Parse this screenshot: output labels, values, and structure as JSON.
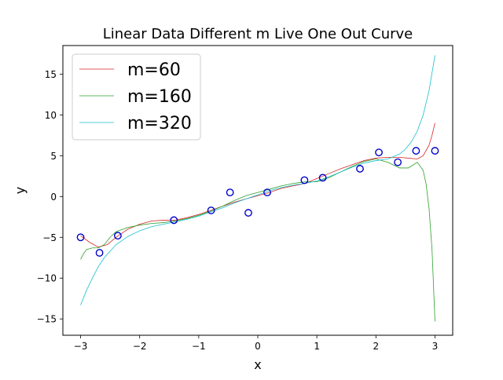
{
  "chart_data": {
    "type": "line",
    "title": "Linear Data Different m Live One Out Curve",
    "xlabel": "x",
    "ylabel": "y",
    "xlim": [
      -3.3,
      3.3
    ],
    "ylim": [
      -17,
      18.5
    ],
    "xticks": [
      -3,
      -2,
      -1,
      0,
      1,
      2,
      3
    ],
    "xtick_labels": [
      "−3",
      "−2",
      "−1",
      "0",
      "1",
      "2",
      "3"
    ],
    "yticks": [
      -15,
      -10,
      -5,
      0,
      5,
      10,
      15
    ],
    "ytick_labels": [
      "−15",
      "−10",
      "−5",
      "0",
      "5",
      "10",
      "15"
    ],
    "grid": false,
    "legend_position": "top-left",
    "points": {
      "x": [
        -3.0,
        -2.68,
        -2.37,
        -1.42,
        -0.79,
        -0.47,
        -0.16,
        0.16,
        0.79,
        1.1,
        1.73,
        2.05,
        2.37,
        2.68,
        3.0
      ],
      "y": [
        -5.0,
        -6.9,
        -4.8,
        -2.9,
        -1.7,
        0.5,
        -2.0,
        0.5,
        2.0,
        2.3,
        3.4,
        5.4,
        4.2,
        5.6,
        5.6
      ],
      "color": "#0000cc"
    },
    "series": [
      {
        "name": "m=60",
        "color": "#d62728",
        "x": [
          -3.0,
          -2.85,
          -2.7,
          -2.55,
          -2.4,
          -2.2,
          -2.0,
          -1.8,
          -1.6,
          -1.4,
          -1.2,
          -1.0,
          -0.8,
          -0.6,
          -0.4,
          -0.2,
          0.0,
          0.2,
          0.4,
          0.6,
          0.8,
          1.0,
          1.2,
          1.4,
          1.6,
          1.8,
          2.0,
          2.2,
          2.4,
          2.55,
          2.7,
          2.8,
          2.9,
          2.95,
          3.0
        ],
        "y": [
          -4.8,
          -5.6,
          -6.2,
          -5.9,
          -5.0,
          -4.0,
          -3.4,
          -3.0,
          -2.9,
          -2.9,
          -2.6,
          -2.2,
          -1.7,
          -1.2,
          -0.7,
          -0.3,
          0.1,
          0.5,
          1.0,
          1.3,
          1.6,
          2.2,
          2.8,
          3.4,
          3.9,
          4.4,
          4.7,
          4.8,
          4.8,
          4.7,
          4.6,
          5.0,
          6.3,
          7.5,
          9.0
        ]
      },
      {
        "name": "m=160",
        "color": "#2ca02c",
        "x": [
          -3.0,
          -2.95,
          -2.9,
          -2.8,
          -2.7,
          -2.6,
          -2.5,
          -2.4,
          -2.2,
          -2.0,
          -1.8,
          -1.6,
          -1.4,
          -1.2,
          -1.0,
          -0.8,
          -0.6,
          -0.4,
          -0.2,
          0.0,
          0.2,
          0.4,
          0.6,
          0.8,
          1.0,
          1.2,
          1.4,
          1.6,
          1.8,
          2.0,
          2.2,
          2.4,
          2.55,
          2.7,
          2.8,
          2.85,
          2.9,
          2.95,
          3.0
        ],
        "y": [
          -7.7,
          -7.0,
          -6.5,
          -6.3,
          -6.3,
          -5.9,
          -5.0,
          -4.3,
          -3.8,
          -3.5,
          -3.3,
          -3.2,
          -3.0,
          -2.7,
          -2.3,
          -1.8,
          -1.2,
          -0.5,
          0.1,
          0.5,
          0.9,
          1.3,
          1.6,
          1.8,
          1.8,
          2.3,
          3.0,
          3.7,
          4.3,
          4.6,
          4.2,
          3.5,
          3.5,
          4.2,
          3.2,
          1.5,
          -1.5,
          -6.5,
          -15.3
        ]
      },
      {
        "name": "m=320",
        "color": "#17becf",
        "x": [
          -3.0,
          -2.9,
          -2.8,
          -2.7,
          -2.6,
          -2.4,
          -2.2,
          -2.0,
          -1.8,
          -1.6,
          -1.4,
          -1.2,
          -1.0,
          -0.8,
          -0.6,
          -0.4,
          -0.2,
          0.0,
          0.2,
          0.4,
          0.6,
          0.8,
          1.0,
          1.2,
          1.4,
          1.6,
          1.8,
          2.0,
          2.2,
          2.4,
          2.5,
          2.6,
          2.7,
          2.8,
          2.9,
          3.0
        ],
        "y": [
          -13.3,
          -11.5,
          -10.0,
          -8.6,
          -7.5,
          -5.9,
          -4.9,
          -4.2,
          -3.7,
          -3.4,
          -3.1,
          -2.8,
          -2.4,
          -1.9,
          -1.4,
          -0.8,
          -0.3,
          0.2,
          0.7,
          1.1,
          1.4,
          1.6,
          1.9,
          2.4,
          3.0,
          3.6,
          4.1,
          4.4,
          4.6,
          5.2,
          5.8,
          6.7,
          8.0,
          10.0,
          13.0,
          17.3
        ]
      }
    ]
  }
}
